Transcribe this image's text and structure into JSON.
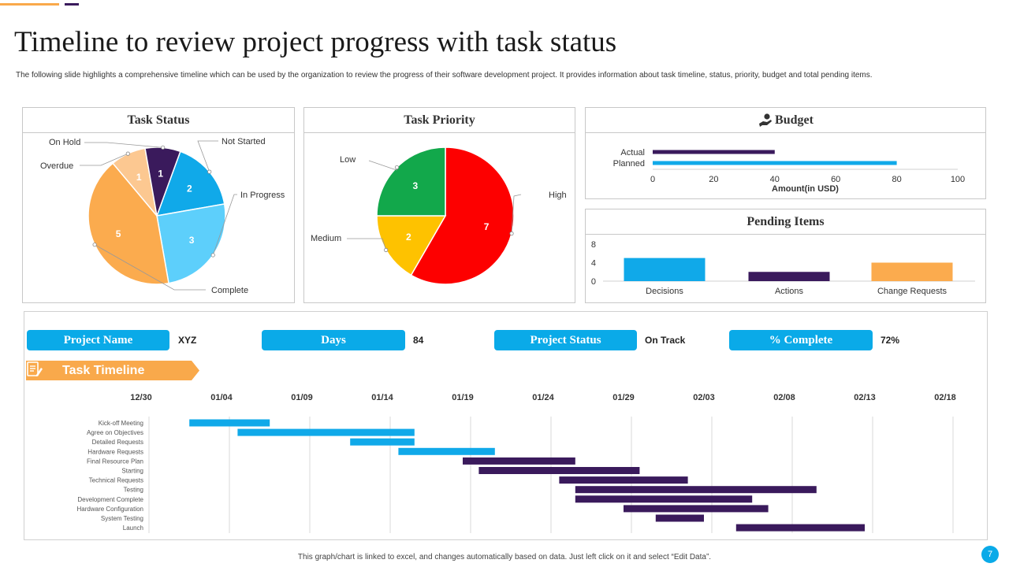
{
  "page": {
    "title": "Timeline to review project progress with task status",
    "subtitle": "The following slide highlights a comprehensive timeline  which can be used by the organization to review the progress of their software development project. It provides information about task timeline,  status, priority, budget and total pending items.",
    "footer_note": "This graph/chart is linked to excel, and changes automatically based on data. Just left click on it and select “Edit Data”.",
    "page_number": "7",
    "colors": {
      "accent_orange": "#f9a94b",
      "accent_purple": "#3a1a5c",
      "accent_blue": "#0aaae8"
    }
  },
  "project_info": {
    "name_label": "Project Name",
    "name_value": "XYZ",
    "days_label": "Days",
    "days_value": "84",
    "status_label": "Project Status",
    "status_value": "On Track",
    "complete_label": "% Complete",
    "complete_value": "72%"
  },
  "timeline_banner": {
    "label": "Task Timeline",
    "icon": "document-pencil-icon"
  },
  "budget_icon": "money-hand-icon",
  "chart_data": [
    {
      "id": "task_status",
      "type": "pie",
      "title": "Task Status",
      "slices": [
        {
          "label": "Not Started",
          "value": 2,
          "color": "#10a9e9"
        },
        {
          "label": "In Progress",
          "value": 3,
          "color": "#5dcffb"
        },
        {
          "label": "Complete",
          "value": 5,
          "color": "#fbab4e"
        },
        {
          "label": "Overdue",
          "value": 1,
          "color": "#fcc891"
        },
        {
          "label": "On Hold",
          "value": 1,
          "color": "#3a1a5c"
        }
      ]
    },
    {
      "id": "task_priority",
      "type": "pie",
      "title": "Task Priority",
      "slices": [
        {
          "label": "High",
          "value": 7,
          "color": "#fd0000"
        },
        {
          "label": "Medium",
          "value": 2,
          "color": "#fec200"
        },
        {
          "label": "Low",
          "value": 3,
          "color": "#12a84b"
        }
      ]
    },
    {
      "id": "budget",
      "type": "bar",
      "orientation": "horizontal",
      "title": "Budget",
      "categories": [
        "Actual",
        "Planned"
      ],
      "values": [
        40,
        80
      ],
      "colors": [
        "#3a1a5c",
        "#10a9e9"
      ],
      "xlabel": "Amount(in USD)",
      "xlim": [
        0,
        100
      ],
      "xticks": [
        0,
        20,
        40,
        60,
        80,
        100
      ]
    },
    {
      "id": "pending_items",
      "type": "bar",
      "title": "Pending Items",
      "categories": [
        "Decisions",
        "Actions",
        "Change Requests"
      ],
      "values": [
        5,
        2,
        4
      ],
      "colors": [
        "#10a9e9",
        "#3a1a5c",
        "#fbab4e"
      ],
      "ylim": [
        0,
        8
      ],
      "yticks": [
        0,
        4,
        8
      ]
    },
    {
      "id": "task_timeline",
      "type": "bar",
      "orientation": "horizontal-gantt",
      "x_start_tick": "12/30",
      "x_ticks": [
        "12/30",
        "01/04",
        "01/09",
        "01/14",
        "01/19",
        "01/24",
        "01/29",
        "02/03",
        "02/08",
        "02/13",
        "02/18"
      ],
      "tasks": [
        {
          "label": "Kick-off Meeting",
          "start": "01/02",
          "end": "01/07",
          "color": "#10a9e9"
        },
        {
          "label": "Agree on Objectives",
          "start": "01/05",
          "end": "01/16",
          "color": "#10a9e9"
        },
        {
          "label": "Detailed Requests",
          "start": "01/12",
          "end": "01/16",
          "color": "#10a9e9"
        },
        {
          "label": "Hardware Requests",
          "start": "01/15",
          "end": "01/21",
          "color": "#10a9e9"
        },
        {
          "label": "Final Resource Plan",
          "start": "01/19",
          "end": "01/26",
          "color": "#3a1a5c"
        },
        {
          "label": "Starting",
          "start": "01/20",
          "end": "01/30",
          "color": "#3a1a5c"
        },
        {
          "label": "Technical Requests",
          "start": "01/25",
          "end": "02/02",
          "color": "#3a1a5c"
        },
        {
          "label": "Testing",
          "start": "01/26",
          "end": "02/10",
          "color": "#3a1a5c"
        },
        {
          "label": "Development Complete",
          "start": "01/26",
          "end": "02/06",
          "color": "#3a1a5c"
        },
        {
          "label": "Hardware Configuration",
          "start": "01/29",
          "end": "02/07",
          "color": "#3a1a5c"
        },
        {
          "label": "System Testing",
          "start": "01/31",
          "end": "02/03",
          "color": "#3a1a5c"
        },
        {
          "label": "Launch",
          "start": "02/05",
          "end": "02/13",
          "color": "#3a1a5c"
        }
      ]
    }
  ]
}
